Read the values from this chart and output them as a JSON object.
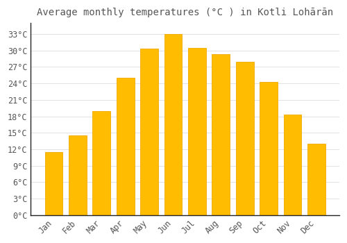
{
  "title": "Average monthly temperatures (°C ) in Kotli Lohārān",
  "months": [
    "Jan",
    "Feb",
    "Mar",
    "Apr",
    "May",
    "Jun",
    "Jul",
    "Aug",
    "Sep",
    "Oct",
    "Nov",
    "Dec"
  ],
  "values": [
    11.5,
    14.5,
    19.0,
    25.0,
    30.3,
    33.0,
    30.5,
    29.3,
    28.0,
    24.3,
    18.3,
    13.0
  ],
  "bar_color": "#FFBC00",
  "bar_edge_color": "#F0A800",
  "background_color": "#FFFFFF",
  "plot_bg_color": "#FFFFFF",
  "grid_color": "#DDDDDD",
  "text_color": "#555555",
  "spine_color": "#222222",
  "ylim": [
    0,
    35
  ],
  "yticks": [
    0,
    3,
    6,
    9,
    12,
    15,
    18,
    21,
    24,
    27,
    30,
    33
  ],
  "ylabel_suffix": "°C",
  "title_fontsize": 10,
  "tick_fontsize": 8.5,
  "bar_width": 0.75
}
